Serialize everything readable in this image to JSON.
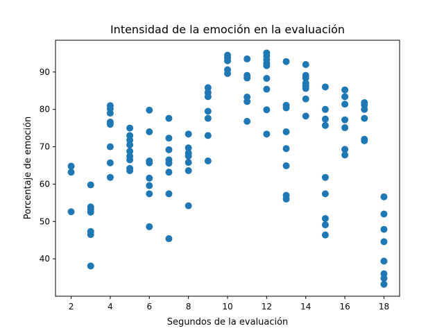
{
  "chart_data": {
    "type": "scatter",
    "title": "Intensidad de la emoción en la evaluación",
    "xlabel": "Segundos de la evaluación",
    "ylabel": "Porcentaje de emoción",
    "xlim": [
      1.2,
      18.8
    ],
    "ylim": [
      30,
      98.5
    ],
    "xticks": [
      2,
      4,
      6,
      8,
      10,
      12,
      14,
      16,
      18
    ],
    "yticks": [
      40,
      50,
      60,
      70,
      80,
      90
    ],
    "grid": false,
    "color": "#1f77b4",
    "series": [
      {
        "points": [
          [
            2,
            64.8
          ],
          [
            2,
            63.2
          ],
          [
            2,
            52.6
          ],
          [
            3,
            59.8
          ],
          [
            3,
            53.9
          ],
          [
            3,
            53.3
          ],
          [
            3,
            52.5
          ],
          [
            3,
            47.3
          ],
          [
            3,
            46.5
          ],
          [
            3,
            38.1
          ],
          [
            4,
            81.0
          ],
          [
            4,
            80.2
          ],
          [
            4,
            79.0
          ],
          [
            4,
            76.6
          ],
          [
            4,
            76.0
          ],
          [
            4,
            70.0
          ],
          [
            4,
            65.7
          ],
          [
            4,
            61.8
          ],
          [
            5,
            75.0
          ],
          [
            5,
            73.0
          ],
          [
            5,
            71.8
          ],
          [
            5,
            70.5
          ],
          [
            5,
            68.8
          ],
          [
            5,
            67.5
          ],
          [
            5,
            66.5
          ],
          [
            5,
            64.2
          ],
          [
            5,
            63.6
          ],
          [
            6,
            79.8
          ],
          [
            6,
            74.0
          ],
          [
            6,
            66.2
          ],
          [
            6,
            65.7
          ],
          [
            6,
            61.6
          ],
          [
            6,
            59.6
          ],
          [
            6,
            57.4
          ],
          [
            6,
            48.6
          ],
          [
            7,
            77.6
          ],
          [
            7,
            72.3
          ],
          [
            7,
            69.2
          ],
          [
            7,
            66.5
          ],
          [
            7,
            65.6
          ],
          [
            7,
            63.2
          ],
          [
            7,
            57.4
          ],
          [
            7,
            45.4
          ],
          [
            8,
            73.4
          ],
          [
            8,
            69.7
          ],
          [
            8,
            68.3
          ],
          [
            8,
            67.5
          ],
          [
            8,
            65.8
          ],
          [
            8,
            63.6
          ],
          [
            8,
            54.2
          ],
          [
            9,
            85.8
          ],
          [
            9,
            84.5
          ],
          [
            9,
            83.4
          ],
          [
            9,
            79.5
          ],
          [
            9,
            77.6
          ],
          [
            9,
            73.0
          ],
          [
            9,
            66.2
          ],
          [
            10,
            94.5
          ],
          [
            10,
            93.8
          ],
          [
            10,
            93.0
          ],
          [
            10,
            90.6
          ],
          [
            10,
            89.6
          ],
          [
            11,
            93.5
          ],
          [
            11,
            89.1
          ],
          [
            11,
            88.4
          ],
          [
            11,
            83.3
          ],
          [
            11,
            82.1
          ],
          [
            11,
            76.8
          ],
          [
            12,
            95.1
          ],
          [
            12,
            94.3
          ],
          [
            12,
            93.3
          ],
          [
            12,
            92.3
          ],
          [
            12,
            91.7
          ],
          [
            12,
            88.3
          ],
          [
            12,
            85.4
          ],
          [
            12,
            79.9
          ],
          [
            12,
            73.4
          ],
          [
            13,
            92.8
          ],
          [
            13,
            81.1
          ],
          [
            13,
            80.4
          ],
          [
            13,
            74.0
          ],
          [
            13,
            69.5
          ],
          [
            13,
            64.9
          ],
          [
            13,
            57.0
          ],
          [
            13,
            56.0
          ],
          [
            14,
            92.0
          ],
          [
            14,
            89.1
          ],
          [
            14,
            88.4
          ],
          [
            14,
            87.0
          ],
          [
            14,
            86.2
          ],
          [
            14,
            85.6
          ],
          [
            14,
            82.8
          ],
          [
            14,
            78.2
          ],
          [
            15,
            86.0
          ],
          [
            15,
            80.0
          ],
          [
            15,
            77.4
          ],
          [
            15,
            75.7
          ],
          [
            15,
            61.8
          ],
          [
            15,
            57.4
          ],
          [
            15,
            50.8
          ],
          [
            15,
            49.1
          ],
          [
            15,
            46.4
          ],
          [
            16,
            85.2
          ],
          [
            16,
            83.4
          ],
          [
            16,
            81.4
          ],
          [
            16,
            77.2
          ],
          [
            16,
            75.1
          ],
          [
            16,
            69.3
          ],
          [
            16,
            67.8
          ],
          [
            17,
            81.8
          ],
          [
            17,
            81.2
          ],
          [
            17,
            80.0
          ],
          [
            17,
            77.6
          ],
          [
            17,
            72.0
          ],
          [
            17,
            71.6
          ],
          [
            18,
            56.6
          ],
          [
            18,
            52.0
          ],
          [
            18,
            47.9
          ],
          [
            18,
            44.6
          ],
          [
            18,
            39.4
          ],
          [
            18,
            36.0
          ],
          [
            18,
            34.8
          ],
          [
            18,
            33.2
          ]
        ]
      }
    ]
  }
}
